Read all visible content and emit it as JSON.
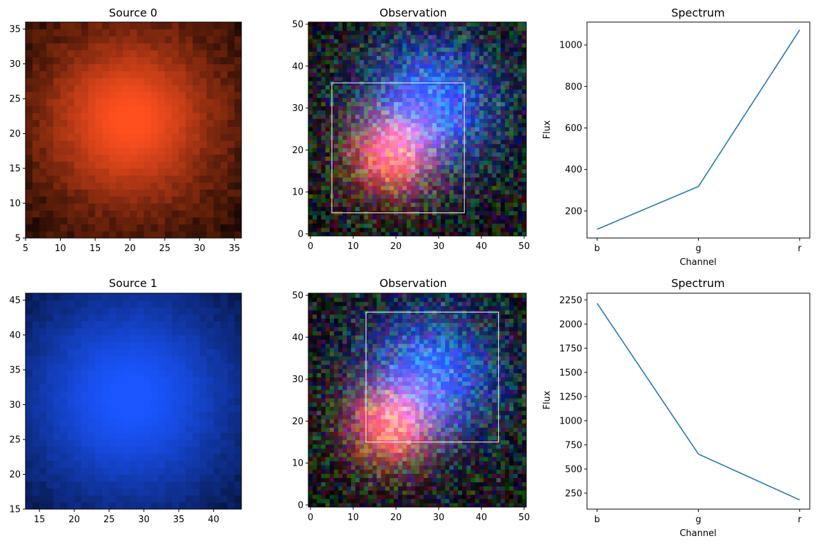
{
  "chart_data": [
    {
      "type": "heatmap",
      "title": "Source 0",
      "xlim": [
        5,
        36
      ],
      "ylim": [
        5,
        36
      ],
      "xticks": [
        "5",
        "10",
        "15",
        "20",
        "25",
        "30",
        "35"
      ],
      "yticks": [
        "5",
        "10",
        "15",
        "20",
        "25",
        "30",
        "35"
      ],
      "source": {
        "center": [
          20,
          22
        ],
        "sigma": 7.0,
        "color": "#ff4f1f"
      },
      "background": "#000000",
      "noise_color": "#7a2a08"
    },
    {
      "type": "heatmap",
      "title": "Observation",
      "xlim": [
        0,
        50
      ],
      "ylim": [
        0,
        50
      ],
      "xticks": [
        "0",
        "10",
        "20",
        "30",
        "40",
        "50"
      ],
      "yticks": [
        "0",
        "10",
        "20",
        "30",
        "40",
        "50"
      ],
      "sources": [
        {
          "center": [
            19,
            19
          ],
          "sigma": 6.0,
          "color": "#ff4a22"
        },
        {
          "center": [
            28,
            31
          ],
          "sigma": 9.0,
          "color": "#2256ff"
        }
      ],
      "box": {
        "x": [
          5,
          36
        ],
        "y": [
          5,
          36
        ]
      },
      "background": "#000000"
    },
    {
      "type": "line",
      "title": "Spectrum",
      "xlabel": "Channel",
      "ylabel": "Flux",
      "categories": [
        "b",
        "g",
        "r"
      ],
      "values": [
        112,
        318,
        1072
      ],
      "ylim": [
        70,
        1110
      ],
      "yticks": [
        200,
        400,
        600,
        800,
        1000
      ],
      "color": "#1f77b4"
    },
    {
      "type": "heatmap",
      "title": "Source 1",
      "xlim": [
        13,
        44
      ],
      "ylim": [
        15,
        46
      ],
      "xticks": [
        "15",
        "20",
        "25",
        "30",
        "35",
        "40"
      ],
      "yticks": [
        "15",
        "20",
        "25",
        "30",
        "35",
        "40",
        "45"
      ],
      "source": {
        "center": [
          28,
          31
        ],
        "sigma": 9.5,
        "color": "#1a55ff"
      },
      "background": "#000000",
      "noise_color": "#0a1f66"
    },
    {
      "type": "heatmap",
      "title": "Observation",
      "xlim": [
        0,
        50
      ],
      "ylim": [
        0,
        50
      ],
      "xticks": [
        "0",
        "10",
        "20",
        "30",
        "40",
        "50"
      ],
      "yticks": [
        "0",
        "10",
        "20",
        "30",
        "40",
        "50"
      ],
      "sources": [
        {
          "center": [
            19,
            19
          ],
          "sigma": 6.0,
          "color": "#ff4a22"
        },
        {
          "center": [
            28,
            31
          ],
          "sigma": 9.0,
          "color": "#2256ff"
        }
      ],
      "box": {
        "x": [
          13,
          44
        ],
        "y": [
          15,
          46
        ]
      },
      "background": "#000000"
    },
    {
      "type": "line",
      "title": "Spectrum",
      "xlabel": "Channel",
      "ylabel": "Flux",
      "categories": [
        "b",
        "g",
        "r"
      ],
      "values": [
        2215,
        655,
        180
      ],
      "ylim": [
        85,
        2320
      ],
      "yticks": [
        250,
        500,
        750,
        1000,
        1250,
        1500,
        1750,
        2000,
        2250
      ],
      "color": "#1f77b4"
    }
  ]
}
